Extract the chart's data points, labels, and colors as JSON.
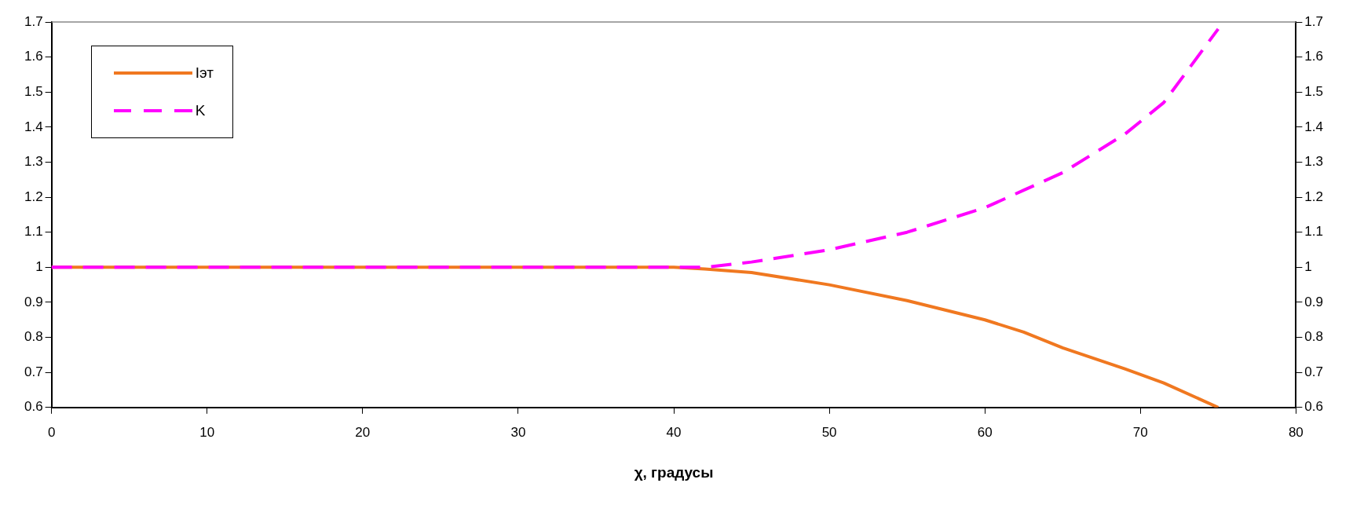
{
  "chart_data": {
    "type": "line",
    "xlabel": "χ, градусы",
    "x": [
      0,
      10,
      20,
      30,
      40,
      42,
      45,
      50,
      55,
      60,
      62.5,
      65,
      69,
      71.5,
      75
    ],
    "series": [
      {
        "name": "Iэт",
        "color": "#f07820",
        "line_style": "solid",
        "values": [
          1,
          1,
          1,
          1,
          1,
          0.995,
          0.985,
          0.95,
          0.905,
          0.85,
          0.815,
          0.77,
          0.71,
          0.67,
          0.6
        ]
      },
      {
        "name": "K",
        "color": "#ff00ff",
        "line_style": "dashed",
        "values": [
          1,
          1,
          1,
          1,
          1,
          1.0,
          1.015,
          1.05,
          1.1,
          1.17,
          1.22,
          1.27,
          1.38,
          1.47,
          1.68
        ]
      }
    ],
    "xlim": [
      0,
      80
    ],
    "xticks": [
      0,
      10,
      20,
      30,
      40,
      50,
      60,
      70,
      80
    ],
    "ylim": [
      0.6,
      1.7
    ],
    "yticks": [
      0.6,
      0.7,
      0.8,
      0.9,
      1,
      1.1,
      1.2,
      1.3,
      1.4,
      1.5,
      1.6,
      1.7
    ],
    "y2lim": [
      0.6,
      1.7
    ],
    "y2ticks": [
      0.6,
      0.7,
      0.8,
      0.9,
      1,
      1.1,
      1.2,
      1.3,
      1.4,
      1.5,
      1.6,
      1.7
    ],
    "grid": false,
    "legend": "top left",
    "marker": "none"
  }
}
